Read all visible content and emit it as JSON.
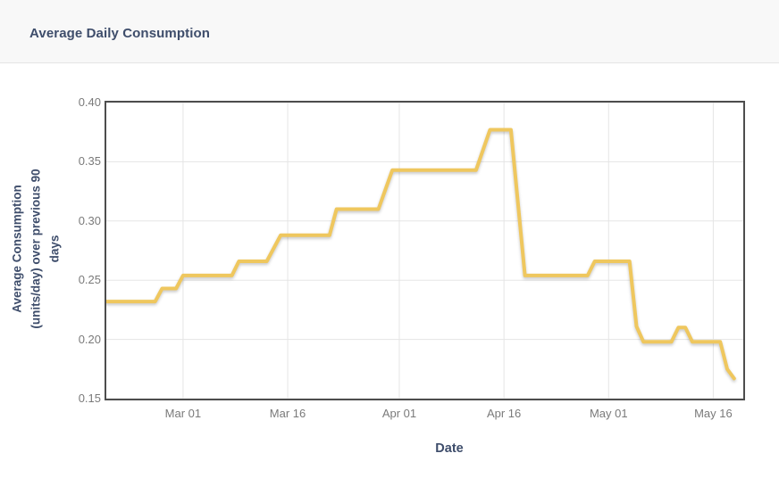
{
  "header": {
    "title": "Average Daily Consumption"
  },
  "colors": {
    "series": "#EFC75E",
    "axis_title": "#3E4D6B",
    "tick_label": "#7A7A7A",
    "plot_border": "#4D4D4D",
    "gridline": "#E5E5E5",
    "header_bg": "#F8F8F8",
    "header_border": "#E4E4E4",
    "background": "#FFFFFF"
  },
  "chart_data": {
    "type": "line",
    "title": "Average Daily Consumption",
    "xlabel": "Date",
    "ylabel": "Average Consumption (units/day) over previous 90 days",
    "ylabel_lines": [
      "Average Consumption",
      "(units/day) over previous 90",
      "days"
    ],
    "grid": true,
    "legend": false,
    "series_name": "Average Daily Consumption",
    "series_color": "#EFC75E",
    "y_domain": [
      0.15,
      0.4
    ],
    "x_domain_days": [
      0,
      91.3
    ],
    "y_ticks": [
      {
        "value": 0.15,
        "label": "0.15"
      },
      {
        "value": 0.2,
        "label": "0.20"
      },
      {
        "value": 0.25,
        "label": "0.25"
      },
      {
        "value": 0.3,
        "label": "0.30"
      },
      {
        "value": 0.35,
        "label": "0.35"
      },
      {
        "value": 0.4,
        "label": "0.40"
      }
    ],
    "x_ticks": [
      {
        "day": 11,
        "label": "Mar 01"
      },
      {
        "day": 26,
        "label": "Mar 16"
      },
      {
        "day": 42,
        "label": "Apr 01"
      },
      {
        "day": 57,
        "label": "Apr 16"
      },
      {
        "day": 72,
        "label": "May 01"
      },
      {
        "day": 87,
        "label": "May 16"
      }
    ],
    "points": [
      {
        "date": "Feb 18",
        "day": 0,
        "value": 0.232
      },
      {
        "date": "Feb 25",
        "day": 7,
        "value": 0.232
      },
      {
        "date": "Feb 26",
        "day": 8,
        "value": 0.243
      },
      {
        "date": "Feb 28",
        "day": 10,
        "value": 0.243
      },
      {
        "date": "Mar 01",
        "day": 11,
        "value": 0.254
      },
      {
        "date": "Mar 08",
        "day": 18,
        "value": 0.254
      },
      {
        "date": "Mar 09",
        "day": 19,
        "value": 0.266
      },
      {
        "date": "Mar 13",
        "day": 23,
        "value": 0.266
      },
      {
        "date": "Mar 15",
        "day": 25,
        "value": 0.288
      },
      {
        "date": "Mar 22",
        "day": 32,
        "value": 0.288
      },
      {
        "date": "Mar 23",
        "day": 33,
        "value": 0.31
      },
      {
        "date": "Mar 29",
        "day": 39,
        "value": 0.31
      },
      {
        "date": "Mar 31",
        "day": 41,
        "value": 0.343
      },
      {
        "date": "Apr 12",
        "day": 53,
        "value": 0.343
      },
      {
        "date": "Apr 14",
        "day": 55,
        "value": 0.377
      },
      {
        "date": "Apr 17",
        "day": 58,
        "value": 0.377
      },
      {
        "date": "Apr 19",
        "day": 60,
        "value": 0.254
      },
      {
        "date": "Apr 28",
        "day": 69,
        "value": 0.254
      },
      {
        "date": "Apr 29",
        "day": 70,
        "value": 0.266
      },
      {
        "date": "May 04",
        "day": 75,
        "value": 0.266
      },
      {
        "date": "May 05",
        "day": 76,
        "value": 0.211
      },
      {
        "date": "May 06",
        "day": 77,
        "value": 0.198
      },
      {
        "date": "May 10",
        "day": 81,
        "value": 0.198
      },
      {
        "date": "May 11",
        "day": 82,
        "value": 0.21
      },
      {
        "date": "May 12",
        "day": 83,
        "value": 0.21
      },
      {
        "date": "May 13",
        "day": 84,
        "value": 0.198
      },
      {
        "date": "May 17",
        "day": 88,
        "value": 0.198
      },
      {
        "date": "May 18",
        "day": 89,
        "value": 0.175
      },
      {
        "date": "May 19",
        "day": 90,
        "value": 0.167
      }
    ]
  }
}
